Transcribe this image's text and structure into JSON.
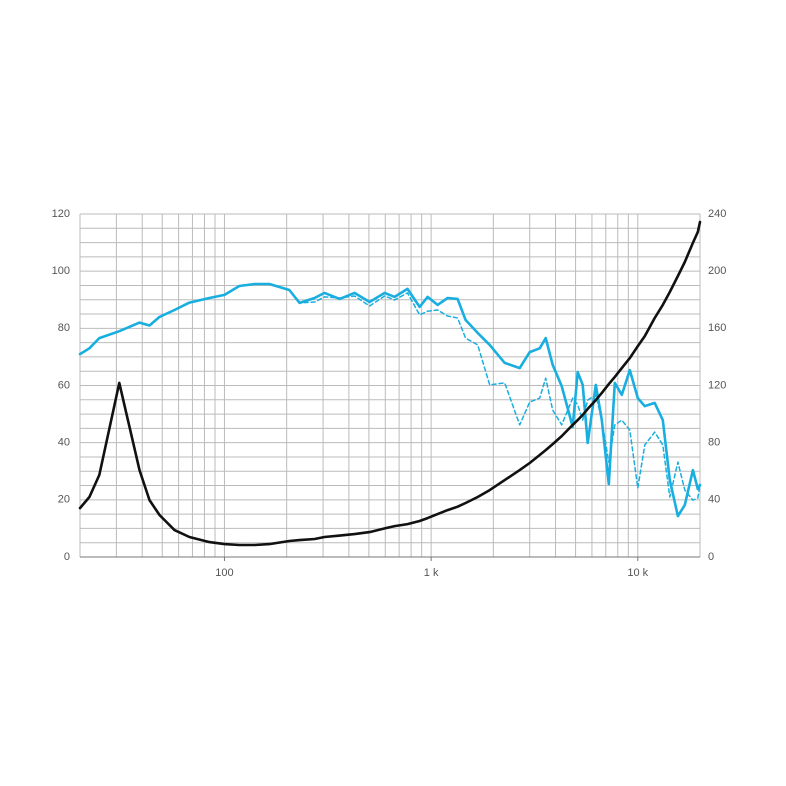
{
  "chart_data": {
    "type": "line",
    "xscale": "log",
    "x": [
      20,
      22.2,
      24.8,
      31,
      38.8,
      43.4,
      48.5,
      57.3,
      67.7,
      84.6,
      100,
      118,
      140,
      165,
      206,
      231,
      273,
      305,
      361,
      426,
      504,
      596,
      666,
      769,
      880,
      962,
      1075,
      1202,
      1343,
      1469,
      1680,
      1920,
      2270,
      2684,
      3000,
      3352,
      3585,
      3875,
      4285,
      4840,
      5119,
      5415,
      5725,
      6263,
      6696,
      7238,
      7740,
      8371,
      9144,
      10000,
      10810,
      12080,
      13210,
      14290,
      15630,
      16890,
      18470,
      19520,
      20000
    ],
    "series": [
      {
        "color": "#19aee0",
        "dash": false,
        "values": [
          71,
          73,
          76.6,
          79,
          82,
          81,
          84,
          86.4,
          89,
          90.6,
          91.7,
          94.8,
          95.5,
          95.5,
          93.4,
          88.9,
          90.6,
          92.4,
          90.3,
          92.4,
          89.2,
          92.4,
          91,
          93.8,
          87.5,
          91,
          88.2,
          90.6,
          90.3,
          82.9,
          78.4,
          74.2,
          67.9,
          66.1,
          71.7,
          73,
          76.6,
          67.2,
          59.8,
          45.5,
          64.7,
          60.2,
          39.9,
          60.2,
          47.9,
          25.5,
          60.9,
          56.7,
          65.4,
          55.6,
          52.8,
          53.9,
          47.9,
          26.9,
          14.3,
          18.2,
          30.4,
          23.8,
          25.2
        ]
      },
      {
        "color": "#19aee0",
        "dash": true,
        "values": [
          null,
          null,
          null,
          null,
          null,
          null,
          null,
          null,
          null,
          null,
          null,
          null,
          null,
          null,
          93.4,
          88.9,
          89.2,
          91,
          90.6,
          91.3,
          87.8,
          91.3,
          89.9,
          92.4,
          84.7,
          86,
          86.4,
          84.3,
          83.6,
          76.6,
          74.2,
          60.2,
          60.9,
          46.2,
          54.2,
          55.6,
          62.6,
          51.4,
          46.2,
          55.6,
          53.2,
          47.9,
          54.9,
          56.7,
          47.9,
          33.2,
          46.2,
          47.9,
          44.4,
          24.1,
          39.2,
          43.7,
          39.2,
          21,
          33.2,
          23.4,
          19.9,
          20.6,
          25.2
        ]
      },
      {
        "color": "#111111",
        "dash": false,
        "values": [
          17.1,
          21,
          28.7,
          60.9,
          30.4,
          19.9,
          14.7,
          9.4,
          7,
          5.2,
          4.5,
          4.2,
          4.2,
          4.5,
          5.6,
          5.9,
          6.3,
          7,
          7.5,
          8,
          8.7,
          10,
          10.8,
          11.5,
          12.6,
          13.6,
          15,
          16.4,
          17.6,
          18.9,
          21,
          23.4,
          26.9,
          30.4,
          32.9,
          35.7,
          37.4,
          39.5,
          42.3,
          46.2,
          47.9,
          49.7,
          51.8,
          54.9,
          57.4,
          60.5,
          63,
          66.1,
          69.6,
          73.8,
          77.3,
          83.6,
          88.2,
          92.7,
          98.3,
          103.2,
          109.9,
          113.7,
          117.2
        ]
      }
    ],
    "xlim": [
      20,
      20000
    ],
    "xticks": [
      100,
      {
        "value": 1000,
        "label": "1 k"
      },
      {
        "value": 10000,
        "label": "10 k"
      }
    ],
    "xgrid": [
      20,
      30,
      40,
      50,
      60,
      70,
      80,
      90,
      100,
      200,
      300,
      400,
      500,
      600,
      700,
      800,
      900,
      1000,
      2000,
      3000,
      4000,
      5000,
      6000,
      7000,
      8000,
      9000,
      10000,
      20000
    ],
    "ylim": [
      0,
      120
    ],
    "yticks": [
      0,
      20,
      40,
      60,
      80,
      100,
      120
    ],
    "ygrid": [
      0,
      5,
      10,
      15,
      20,
      25,
      30,
      35,
      40,
      45,
      50,
      55,
      60,
      65,
      70,
      75,
      80,
      85,
      90,
      95,
      100,
      105,
      110,
      115,
      120
    ],
    "y2lim": [
      0,
      240
    ],
    "y2ticks": [
      0,
      40,
      80,
      120,
      160,
      200,
      240
    ],
    "grid": true
  }
}
